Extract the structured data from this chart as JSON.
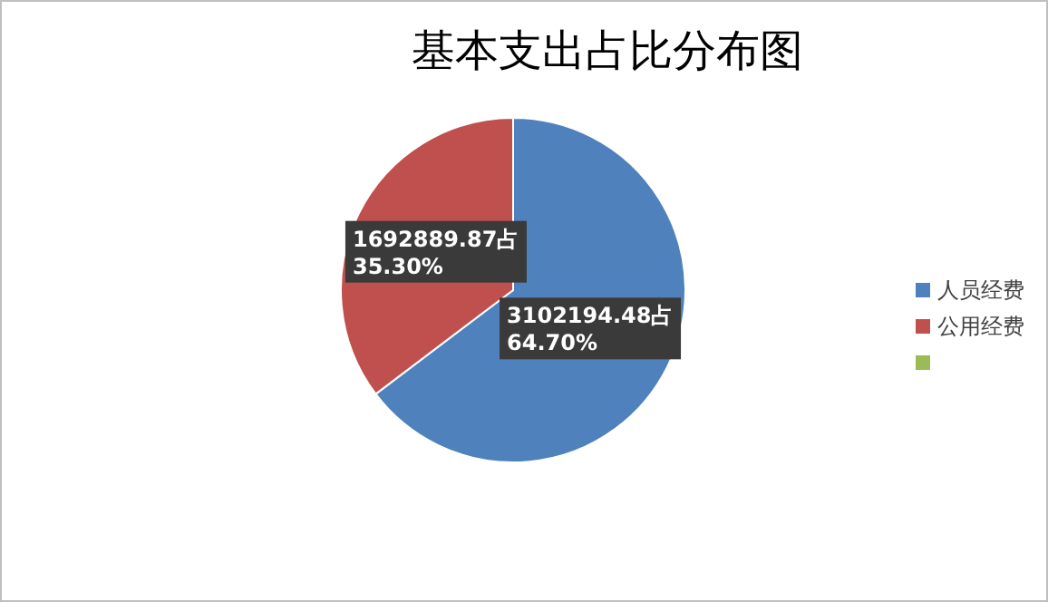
{
  "chart_data": {
    "type": "pie",
    "title": "基本支出占比分布图",
    "categories": [
      "人员经费",
      "公用经费",
      null
    ],
    "values": [
      3102194.48,
      1692889.87,
      null
    ],
    "colors": [
      "#4f81bd",
      "#c0504d",
      "#9bbb59"
    ],
    "value_labels": [
      "3102194.48占\n64.70%",
      "1692889.87占\n35.30%",
      null
    ],
    "legend": "right"
  }
}
